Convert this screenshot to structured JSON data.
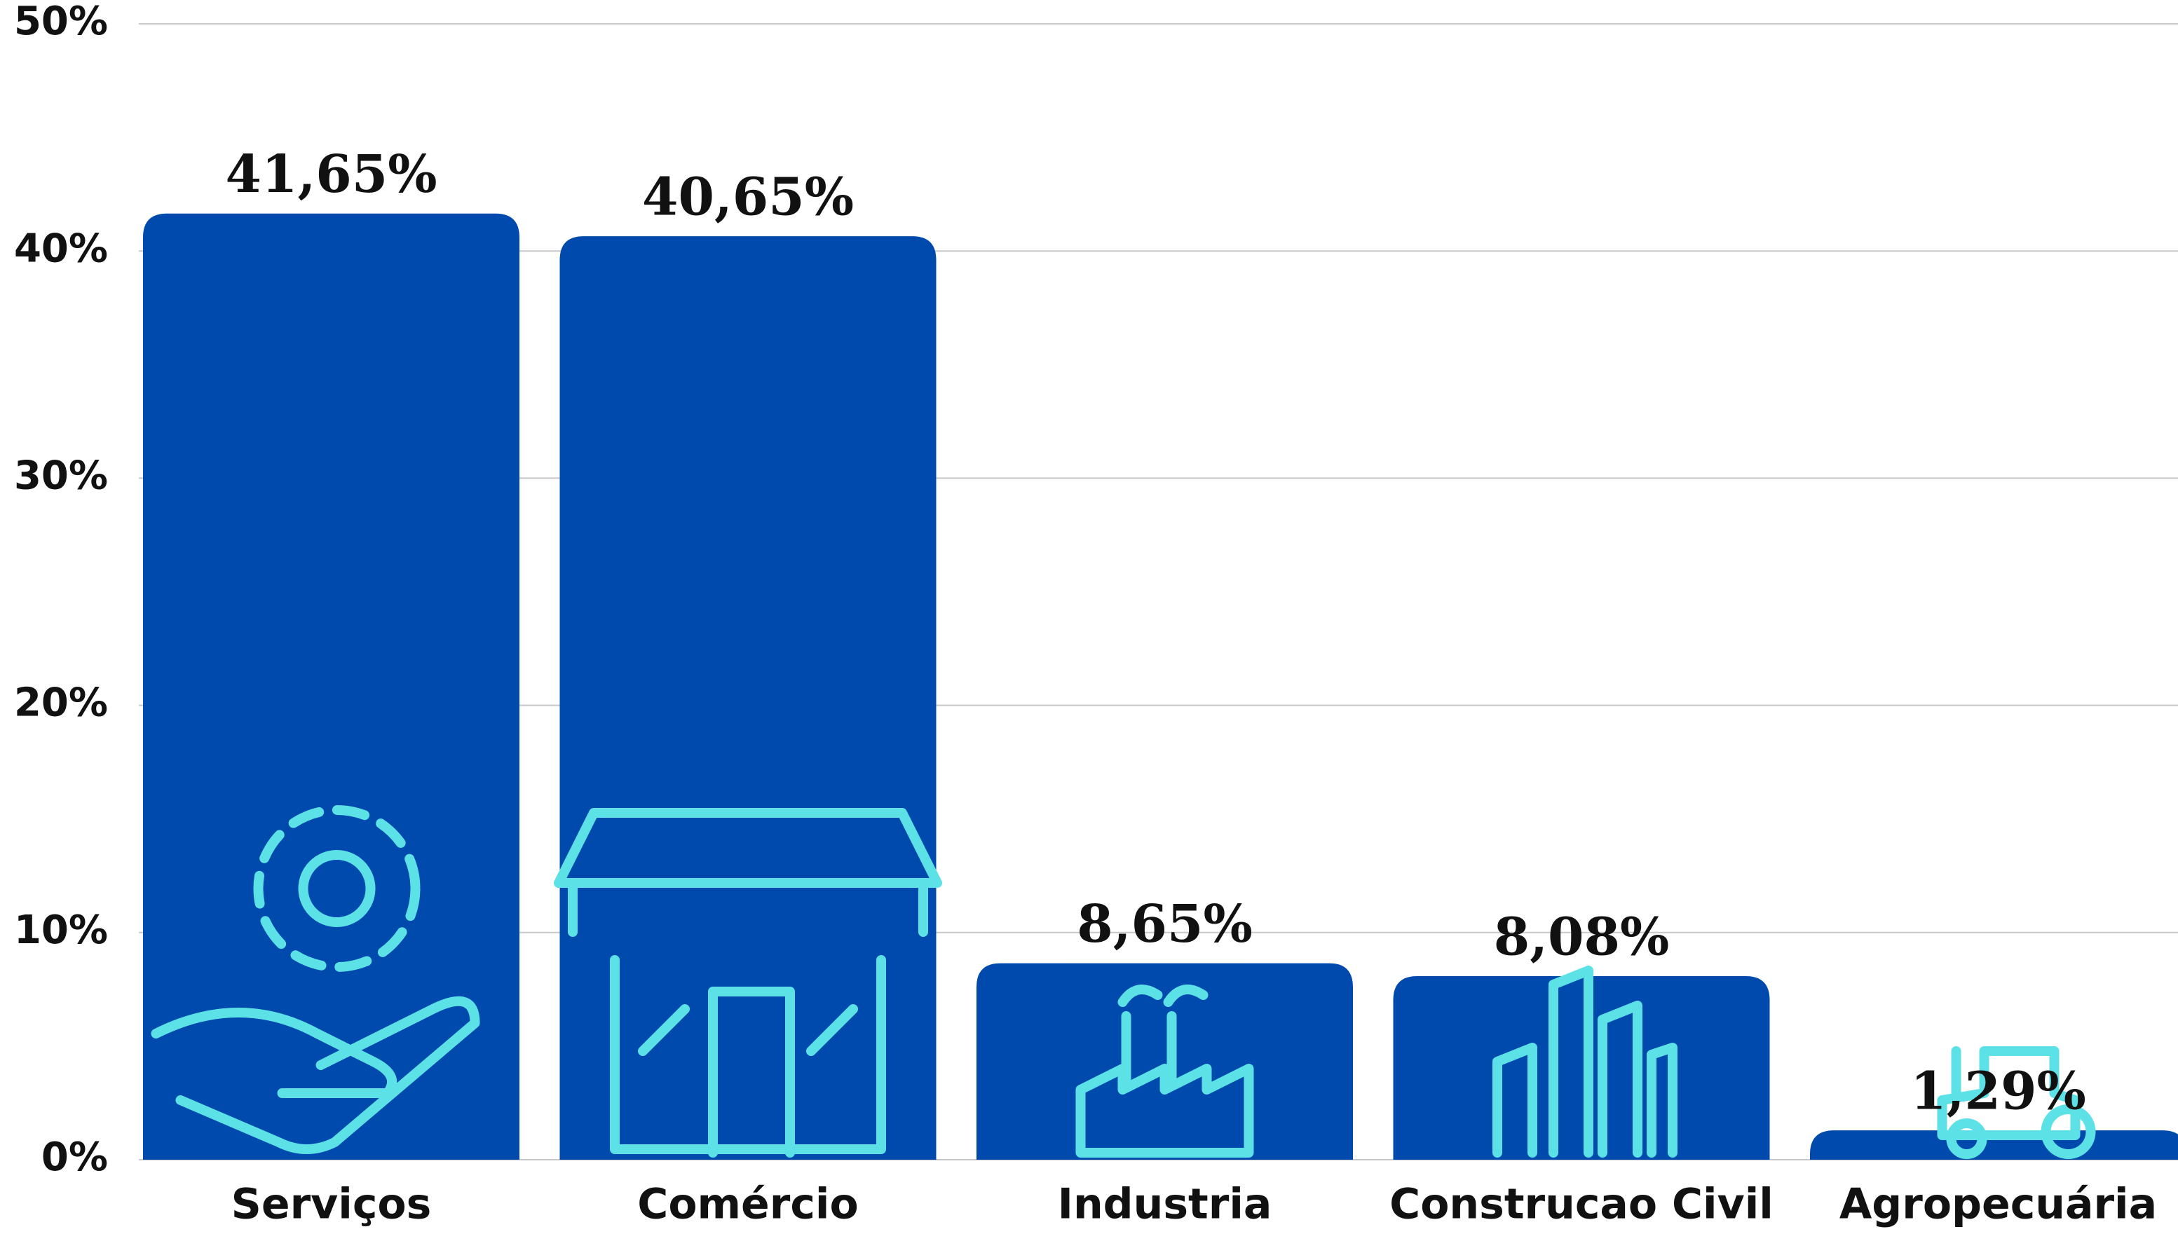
{
  "chart_data": {
    "type": "bar",
    "categories": [
      "Serviços",
      "Comércio",
      "Industria",
      "Construcao Civil",
      "Agropecuária"
    ],
    "values": [
      41.65,
      40.65,
      8.65,
      8.08,
      1.29
    ],
    "value_labels": [
      "41,65%",
      "40,65%",
      "8,65%",
      "8,08%",
      "1,29%"
    ],
    "color": "#004aad",
    "ylim": [
      0,
      50
    ],
    "yticks": [
      {
        "value": 0,
        "label": "0%"
      },
      {
        "value": 10,
        "label": "10%"
      },
      {
        "value": 20,
        "label": "20%"
      },
      {
        "value": 30,
        "label": "30%"
      },
      {
        "value": 40,
        "label": "40%"
      },
      {
        "value": 50,
        "label": "50%"
      }
    ],
    "grid": true
  }
}
